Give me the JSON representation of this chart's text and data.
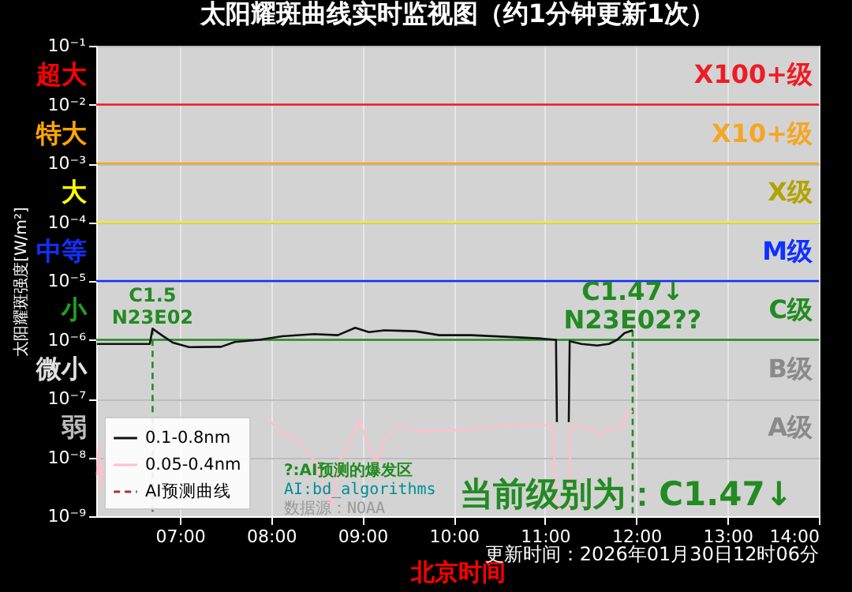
{
  "chart_data": {
    "type": "line",
    "title": "太阳耀斑曲线实时监视图（约1分钟更新1次）",
    "xlabel": "北京时间",
    "ylabel": "太阳耀斑强度[W/m²]",
    "xlim": [
      6.083,
      14
    ],
    "xticks": [
      {
        "value": 7,
        "label": "07:00"
      },
      {
        "value": 8,
        "label": "08:00"
      },
      {
        "value": 9,
        "label": "09:00"
      },
      {
        "value": 10,
        "label": "10:00"
      },
      {
        "value": 11,
        "label": "11:00"
      },
      {
        "value": 12,
        "label": "12:00"
      },
      {
        "value": 13,
        "label": "13:00"
      },
      {
        "value": 14,
        "label": "14:00"
      }
    ],
    "ylim": [
      1e-09,
      0.1
    ],
    "yticks": [
      {
        "value": 1e-09,
        "label": "10⁻⁹"
      },
      {
        "value": 1e-08,
        "label": "10⁻⁸"
      },
      {
        "value": 1e-07,
        "label": "10⁻⁷"
      },
      {
        "value": 1e-06,
        "label": "10⁻⁶"
      },
      {
        "value": 1e-05,
        "label": "10⁻⁵"
      },
      {
        "value": 0.0001,
        "label": "10⁻⁴"
      },
      {
        "value": 0.001,
        "label": "10⁻³"
      },
      {
        "value": 0.01,
        "label": "10⁻²"
      },
      {
        "value": 0.1,
        "label": "10⁻¹"
      }
    ],
    "log": true,
    "grid": true,
    "legend": "bottom left",
    "series": [
      {
        "name": "0.1-0.8nm",
        "color": "#111111",
        "x": [
          6.09,
          6.67,
          6.7,
          6.8,
          6.92,
          7.1,
          7.45,
          7.6,
          7.87,
          8.12,
          8.47,
          8.73,
          8.92,
          9.07,
          9.24,
          9.58,
          9.84,
          10.19,
          10.7,
          10.96,
          11.12,
          11.13,
          11.2,
          11.26,
          11.27,
          11.4,
          11.57,
          11.7,
          11.79,
          11.87,
          11.96
        ],
        "values": [
          8.5e-07,
          8.5e-07,
          1.55e-06,
          1.2e-06,
          9e-07,
          7.5e-07,
          7.6e-07,
          9.2e-07,
          1e-06,
          1.15e-06,
          1.25e-06,
          1.2e-06,
          1.6e-06,
          1.35e-06,
          1.45e-06,
          1.4e-06,
          1.2e-06,
          1.2e-06,
          1.1e-06,
          1.05e-06,
          1e-06,
          4e-08,
          null,
          4e-08,
          9.5e-07,
          8.5e-07,
          8e-07,
          8.5e-07,
          1e-06,
          1.3e-06,
          1.45e-06
        ]
      },
      {
        "name": "0.05-0.4nm",
        "color": "#ffc0cb",
        "x": [
          6.09,
          6.11,
          6.13,
          6.15,
          6.2,
          7.78,
          7.95,
          8.12,
          8.28,
          8.47,
          8.6,
          8.66,
          8.74,
          8.9,
          8.96,
          9.07,
          9.15,
          9.24,
          9.41,
          9.58,
          9.84,
          10.19,
          10.53,
          10.88,
          11.09,
          11.12,
          11.2,
          11.26,
          11.28,
          11.5,
          11.6,
          11.7,
          11.85,
          11.9,
          11.96
        ],
        "values": [
          5e-09,
          1.5e-08,
          3e-09,
          8e-09,
          null,
          null,
          4.7e-08,
          2.6e-08,
          2.1e-08,
          9e-09,
          3e-09,
          1.5e-09,
          8e-09,
          2.5e-08,
          4.5e-08,
          1.5e-08,
          8e-09,
          2e-08,
          3.6e-08,
          2.8e-08,
          2.8e-08,
          3e-08,
          3.4e-08,
          3.6e-08,
          3.4e-08,
          1.2e-09,
          null,
          1.2e-09,
          3.4e-08,
          3.2e-08,
          2.4e-08,
          3e-08,
          3.3e-08,
          6e-08,
          6e-08
        ]
      },
      {
        "name": "AI预测曲线",
        "color": "#b03030",
        "line_style": "dashed"
      }
    ],
    "ref_lines": [
      {
        "axis": "y",
        "value": 0.01,
        "color": "#ee1c25"
      },
      {
        "axis": "y",
        "value": 0.001,
        "color": "#f5a623"
      },
      {
        "axis": "y",
        "value": 0.0001,
        "color": "#f0f020"
      },
      {
        "axis": "y",
        "value": 1e-05,
        "color": "#1030ff"
      },
      {
        "axis": "y",
        "value": 1e-06,
        "color": "#228b22"
      },
      {
        "axis": "x",
        "value": 6.7,
        "color": "#228b22",
        "line_style": "dashed"
      },
      {
        "axis": "x",
        "value": 11.96,
        "color": "#228b22",
        "line_style": "dashed"
      }
    ],
    "annotations": [
      "超大",
      "特大",
      "大",
      "中等",
      "小",
      "微小",
      "弱",
      "X100+级",
      "X10+级",
      "X级",
      "M级",
      "C级",
      "B级",
      "A级",
      {
        "text": "C1.5\nN23E02",
        "x": 6.7,
        "y": 1.55e-06
      },
      {
        "text": "C1.47↓\nN23E02??",
        "x": 11.96,
        "y": 1.45e-06
      },
      "?:AI预测的爆发区",
      "AI:bd_algorithms",
      "数据源：NOAA",
      "当前级别为：C1.47↓",
      "更新时间：2026年01月30日12时06分"
    ]
  }
}
